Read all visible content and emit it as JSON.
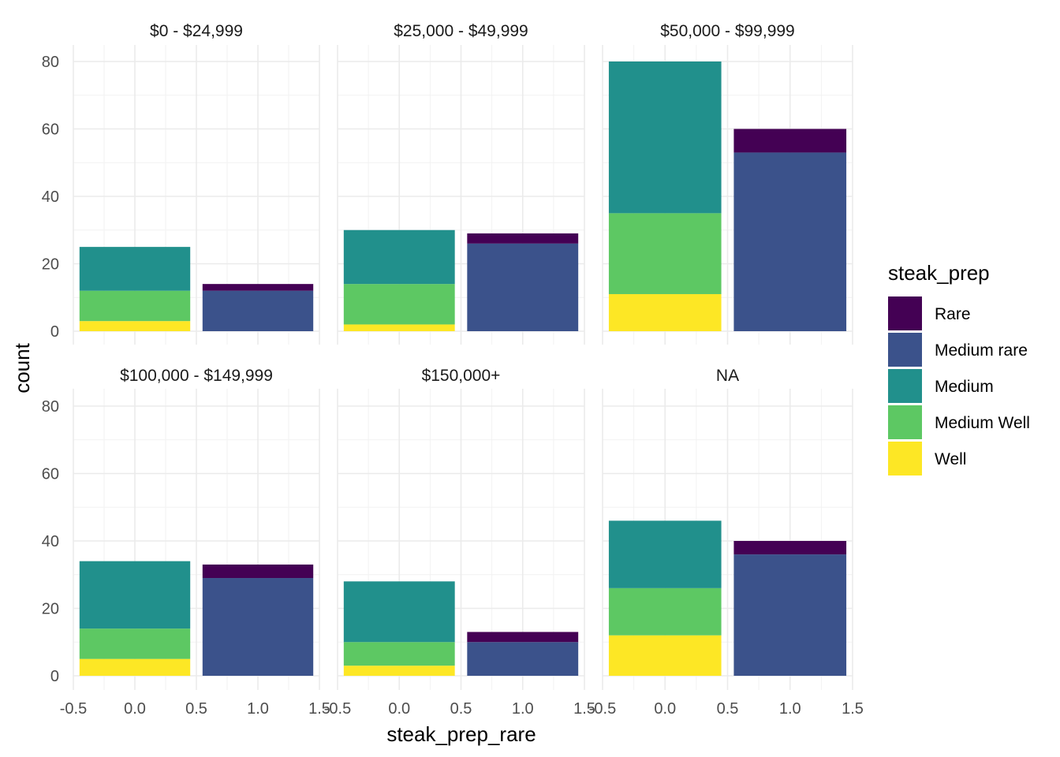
{
  "chart_data": {
    "type": "bar",
    "stacked": true,
    "xlabel": "steak_prep_rare",
    "ylabel": "count",
    "xlim": [
      -0.5,
      1.5
    ],
    "ylim": [
      0,
      80
    ],
    "x_ticks": [
      "-0.5",
      "0.0",
      "0.5",
      "1.0",
      "1.5"
    ],
    "y_ticks": [
      "0",
      "20",
      "40",
      "60",
      "80"
    ],
    "x_tick_values": [
      -0.5,
      0.0,
      0.5,
      1.0,
      1.5
    ],
    "y_tick_values": [
      0,
      20,
      40,
      60,
      80
    ],
    "grid": true,
    "legend": {
      "title": "steak_prep",
      "position": "right",
      "items": [
        {
          "name": "Rare",
          "color": "#440154"
        },
        {
          "name": "Medium rare",
          "color": "#3B528B"
        },
        {
          "name": "Medium",
          "color": "#21908C"
        },
        {
          "name": "Medium Well",
          "color": "#5DC863"
        },
        {
          "name": "Well",
          "color": "#FDE725"
        }
      ]
    },
    "facets": [
      {
        "label": "$0 - $24,999",
        "bars": [
          {
            "x": 0,
            "segments": {
              "Well": 3,
              "Medium Well": 9,
              "Medium": 13,
              "Medium rare": 0,
              "Rare": 0
            }
          },
          {
            "x": 1,
            "segments": {
              "Well": 0,
              "Medium Well": 0,
              "Medium": 0,
              "Medium rare": 12,
              "Rare": 2
            }
          }
        ]
      },
      {
        "label": "$25,000 - $49,999",
        "bars": [
          {
            "x": 0,
            "segments": {
              "Well": 2,
              "Medium Well": 12,
              "Medium": 16,
              "Medium rare": 0,
              "Rare": 0
            }
          },
          {
            "x": 1,
            "segments": {
              "Well": 0,
              "Medium Well": 0,
              "Medium": 0,
              "Medium rare": 26,
              "Rare": 3
            }
          }
        ]
      },
      {
        "label": "$50,000 - $99,999",
        "bars": [
          {
            "x": 0,
            "segments": {
              "Well": 11,
              "Medium Well": 24,
              "Medium": 45,
              "Medium rare": 0,
              "Rare": 0
            }
          },
          {
            "x": 1,
            "segments": {
              "Well": 0,
              "Medium Well": 0,
              "Medium": 0,
              "Medium rare": 53,
              "Rare": 7
            }
          }
        ]
      },
      {
        "label": "$100,000 - $149,999",
        "bars": [
          {
            "x": 0,
            "segments": {
              "Well": 5,
              "Medium Well": 9,
              "Medium": 20,
              "Medium rare": 0,
              "Rare": 0
            }
          },
          {
            "x": 1,
            "segments": {
              "Well": 0,
              "Medium Well": 0,
              "Medium": 0,
              "Medium rare": 29,
              "Rare": 4
            }
          }
        ]
      },
      {
        "label": "$150,000+",
        "bars": [
          {
            "x": 0,
            "segments": {
              "Well": 3,
              "Medium Well": 7,
              "Medium": 18,
              "Medium rare": 0,
              "Rare": 0
            }
          },
          {
            "x": 1,
            "segments": {
              "Well": 0,
              "Medium Well": 0,
              "Medium": 0,
              "Medium rare": 10,
              "Rare": 3
            }
          }
        ]
      },
      {
        "label": "NA",
        "bars": [
          {
            "x": 0,
            "segments": {
              "Well": 12,
              "Medium Well": 14,
              "Medium": 20,
              "Medium rare": 0,
              "Rare": 0
            }
          },
          {
            "x": 1,
            "segments": {
              "Well": 0,
              "Medium Well": 0,
              "Medium": 0,
              "Medium rare": 36,
              "Rare": 4
            }
          }
        ]
      }
    ]
  }
}
